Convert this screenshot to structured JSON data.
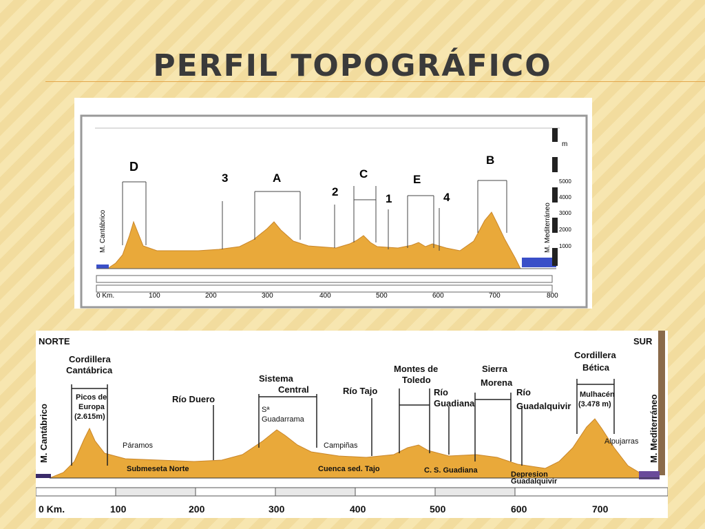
{
  "slide_title": "PERFIL TOPOGRÁFICO",
  "top_figure": {
    "letters": [
      "D",
      "3",
      "A",
      "C",
      "2",
      "1",
      "E",
      "4",
      "B"
    ],
    "sea_left": "M. Cantábrico",
    "sea_right": "M. Mediterráneo",
    "scale_unit": "m",
    "scale_ticks": [
      "5000",
      "4000",
      "3000",
      "2000",
      "1000"
    ],
    "km_ticks": [
      "0 Km.",
      "100",
      "200",
      "300",
      "400",
      "500",
      "600",
      "700",
      "800"
    ]
  },
  "bottom_figure": {
    "north": "NORTE",
    "south": "SUR",
    "sea_left": "M. Cantábrico",
    "sea_right": "M. Mediterráneo",
    "labels": {
      "cantabrica": [
        "Cordillera",
        "Cantábrica"
      ],
      "picos": [
        "Picos de",
        "Europa",
        "(2.615m)"
      ],
      "duero": "Río Duero",
      "sistema": [
        "Sistema",
        "Central"
      ],
      "guadarrama": [
        "Sª",
        "Guadarrama"
      ],
      "tajo": "Río Tajo",
      "toledo": [
        "Montes de",
        "Toledo"
      ],
      "guadiana": [
        "Río",
        "Guadiana"
      ],
      "morena": [
        "Sierra",
        "Morena"
      ],
      "guadalquivir": [
        "Río",
        "Guadalquivir"
      ],
      "betica": [
        "Cordillera",
        "Bética"
      ],
      "mulhacen": [
        "Mulhacén",
        "(3.478 m)"
      ],
      "paramos": "Páramos",
      "campinas": "Campiñas",
      "alpujarras": "Alpujarras",
      "submeseta": "Submeseta Norte",
      "cuenca": "Cuenca sed. Tajo",
      "cs_guadiana": "C. S. Guadiana",
      "depresion": [
        "Depresion",
        "Guadalquivir"
      ]
    },
    "km_ticks": [
      "0 Km.",
      "100",
      "200",
      "300",
      "400",
      "500",
      "600",
      "700"
    ]
  },
  "colors": {
    "terrain": "#e9a93a",
    "terrain_edge": "#c9862a",
    "sea": "#3a4fc8"
  }
}
